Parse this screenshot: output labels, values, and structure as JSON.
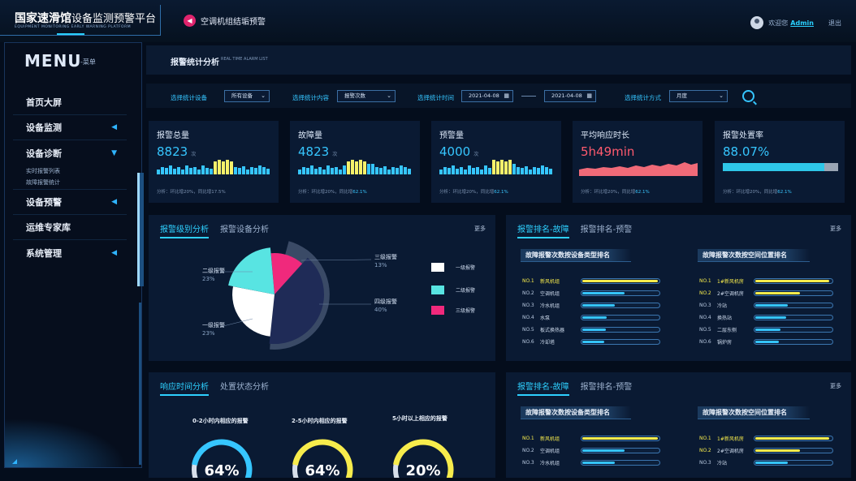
{
  "header": {
    "title_main": "国家速滑馆",
    "title_rest": "设备监测预警平台",
    "subtitle": "EQUIPMENT MONITORING EARLY WARNING PLATFORM",
    "alarm_text": "空调机组结垢预警",
    "user_greeting": "欢迎您",
    "user_name": "Admin",
    "exit_label": "退出"
  },
  "sidebar": {
    "menu_title": "MENU",
    "menu_sub": "-菜单",
    "items": [
      {
        "label": "首页大屏",
        "arrow": ""
      },
      {
        "label": "设备监测",
        "arrow": "◀"
      },
      {
        "label": "设备诊断",
        "arrow": "▼"
      },
      {
        "label": "设备预警",
        "arrow": "◀"
      },
      {
        "label": "运维专家库",
        "arrow": ""
      },
      {
        "label": "系统管理",
        "arrow": "◀"
      }
    ],
    "subitems": [
      "实时报警列表",
      "故障报警统计"
    ]
  },
  "topbar": {
    "title": "报警统计分析",
    "subtitle": "REAL TIME ALARM LIST"
  },
  "filters": {
    "device_label": "选择统计设备",
    "device_value": "所有设备",
    "content_label": "选择统计内容",
    "content_value": "报警次数",
    "time_label": "选择统计时间",
    "date_start": "2021-04-08",
    "date_end": "2021-04-08",
    "method_label": "选择统计方式",
    "method_value": "月度"
  },
  "cards": [
    {
      "title": "报警总量",
      "value": "8823",
      "unit": "次",
      "foot_prefix": "分析：环比增20%，同比增17.5%",
      "foot_hl": "",
      "type": "bars"
    },
    {
      "title": "故障量",
      "value": "4823",
      "unit": "次",
      "foot_prefix": "分析：环比增20%，同比增",
      "foot_hl": "62.1%",
      "type": "bars"
    },
    {
      "title": "预警量",
      "value": "4000",
      "unit": "次",
      "foot_prefix": "分析：环比增20%，同比增",
      "foot_hl": "62.1%",
      "type": "bars"
    },
    {
      "title": "平均响应时长",
      "value": "5h49min",
      "unit": "",
      "foot_prefix": "分析：环比增20%，同比增",
      "foot_hl": "62.1%",
      "type": "area"
    },
    {
      "title": "报警处置率",
      "value": "88.07%",
      "unit": "",
      "foot_prefix": "分析：环比增20%，同比增",
      "foot_hl": "62.1%",
      "type": "progress",
      "progress": 0.88
    }
  ],
  "panel_level": {
    "tab1": "报警级别分析",
    "tab2": "报警设备分析",
    "more": "更多",
    "slices": [
      {
        "name": "三级报警",
        "pct": "13%",
        "color": "#f0297c"
      },
      {
        "name": "四级报警",
        "pct": "40%",
        "color": "#1f2b57"
      },
      {
        "name": "一级报警",
        "pct": "23%",
        "color": "#ffffff"
      },
      {
        "name": "二级报警",
        "pct": "23%",
        "color": "#58e4e2"
      }
    ],
    "legend": [
      {
        "label": "一级报警",
        "color": "#ffffff"
      },
      {
        "label": "二级报警",
        "color": "#58e4e2"
      },
      {
        "label": "三级报警",
        "color": "#f0297c"
      }
    ]
  },
  "panel_rank1": {
    "tab1": "报警排名-故障",
    "tab2": "报警排名-预警",
    "more": "更多",
    "left_head": "故障报警次数按设备类型排名",
    "right_head": "故障报警次数按空间位置排名",
    "left_rows": [
      {
        "no": "NO.1",
        "name": "新风机组",
        "value": 0.98
      },
      {
        "no": "NO.2",
        "name": "空调机组",
        "value": 0.55
      },
      {
        "no": "NO.3",
        "name": "冷水机组",
        "value": 0.42
      },
      {
        "no": "NO.4",
        "name": "水泵",
        "value": 0.32
      },
      {
        "no": "NO.5",
        "name": "板式换热器",
        "value": 0.3
      },
      {
        "no": "NO.6",
        "name": "冷却塔",
        "value": 0.28
      }
    ],
    "right_rows": [
      {
        "no": "NO.1",
        "name": "1#新风机房",
        "value": 0.96
      },
      {
        "no": "NO.2",
        "name": "2#空调机房",
        "value": 0.58
      },
      {
        "no": "NO.3",
        "name": "冷站",
        "value": 0.42
      },
      {
        "no": "NO.4",
        "name": "换热站",
        "value": 0.4
      },
      {
        "no": "NO.5",
        "name": "二层东侧",
        "value": 0.33
      },
      {
        "no": "NO.6",
        "name": "锅炉房",
        "value": 0.3
      }
    ]
  },
  "panel_response": {
    "tab1": "响应时间分析",
    "tab2": "处置状态分析",
    "gauges": [
      {
        "title": "0-2小时内相应的报警",
        "value": "64%",
        "color": "#36c6ff"
      },
      {
        "title": "2-5小时内相应的报警",
        "value": "64%",
        "color": "#f7ec4c"
      },
      {
        "title": "5小时以上相应的报警",
        "value": "20%",
        "color": "#f7ec4c"
      }
    ]
  },
  "panel_rank2": {
    "tab1": "报警排名-故障",
    "tab2": "报警排名-预警",
    "more": "更多",
    "left_head": "故障报警次数按设备类型排名",
    "right_head": "故障报警次数按空间位置排名",
    "left_rows": [
      {
        "no": "NO.1",
        "name": "新风机组",
        "value": 0.98
      },
      {
        "no": "NO.2",
        "name": "空调机组",
        "value": 0.55
      },
      {
        "no": "NO.3",
        "name": "冷水机组",
        "value": 0.42
      }
    ],
    "right_rows": [
      {
        "no": "NO.1",
        "name": "1#新风机房",
        "value": 0.96
      },
      {
        "no": "NO.2",
        "name": "2#空调机房",
        "value": 0.58
      },
      {
        "no": "NO.3",
        "name": "冷站",
        "value": 0.42
      }
    ]
  }
}
